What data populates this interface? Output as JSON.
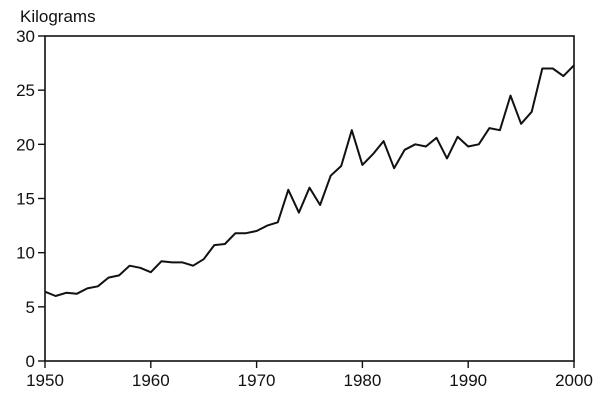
{
  "chart_data": {
    "type": "line",
    "title": "",
    "ylabel": "Kilograms",
    "xlabel": "",
    "xlim": [
      1950,
      2000
    ],
    "ylim": [
      0,
      30
    ],
    "grid": false,
    "legend": "none",
    "x_ticks": [
      "1950",
      "1960",
      "1970",
      "1980",
      "1990",
      "2000"
    ],
    "y_ticks": [
      "0",
      "5",
      "10",
      "15",
      "20",
      "25",
      "30"
    ],
    "line_color": "#111111",
    "series": [
      {
        "x": [
          1950,
          1951,
          1952,
          1953,
          1954,
          1955,
          1956,
          1957,
          1958,
          1959,
          1960,
          1961,
          1962,
          1963,
          1964,
          1965,
          1966,
          1967,
          1968,
          1969,
          1970,
          1971,
          1972,
          1973,
          1974,
          1975,
          1976,
          1977,
          1978,
          1979,
          1980,
          1981,
          1982,
          1983,
          1984,
          1985,
          1986,
          1987,
          1988,
          1989,
          1990,
          1991,
          1992,
          1993,
          1994,
          1995,
          1996,
          1997,
          1998,
          1999,
          2000
        ],
        "y": [
          6.4,
          6.0,
          6.3,
          6.2,
          6.7,
          6.9,
          7.7,
          7.9,
          8.8,
          8.6,
          8.2,
          9.2,
          9.1,
          9.1,
          8.8,
          9.4,
          10.7,
          10.8,
          11.8,
          11.8,
          12.0,
          12.5,
          12.8,
          15.8,
          13.7,
          16.0,
          14.4,
          17.1,
          18.0,
          21.3,
          18.1,
          19.1,
          20.3,
          17.8,
          19.5,
          20.0,
          19.8,
          20.6,
          18.7,
          20.7,
          19.8,
          20.0,
          21.5,
          21.3,
          24.5,
          21.9,
          23.0,
          27.0,
          27.0,
          26.3,
          27.3
        ]
      }
    ]
  }
}
